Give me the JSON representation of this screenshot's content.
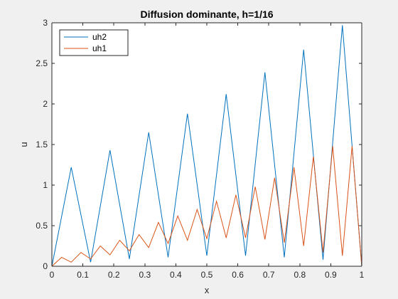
{
  "chart_data": {
    "type": "line",
    "title": "Diffusion dominante, h=1/16",
    "xlabel": "x",
    "ylabel": "u",
    "xlim": [
      0,
      1
    ],
    "ylim": [
      0,
      3
    ],
    "xticks": [
      0,
      0.1,
      0.2,
      0.3,
      0.4,
      0.5,
      0.6,
      0.7,
      0.8,
      0.9,
      1
    ],
    "xtick_labels": [
      "0",
      "0.1",
      "0.2",
      "0.3",
      "0.4",
      "0.5",
      "0.6",
      "0.7",
      "0.8",
      "0.9",
      "1"
    ],
    "yticks": [
      0,
      0.5,
      1,
      1.5,
      2,
      2.5,
      3
    ],
    "ytick_labels": [
      "0",
      "0.5",
      "1",
      "1.5",
      "2",
      "2.5",
      "3"
    ],
    "grid": false,
    "legend_position": "top-left",
    "series": [
      {
        "name": "uh2",
        "color": "#0072BD",
        "x": [
          0,
          0.0625,
          0.125,
          0.1875,
          0.25,
          0.3125,
          0.375,
          0.4375,
          0.5,
          0.5625,
          0.625,
          0.6875,
          0.75,
          0.8125,
          0.875,
          0.9375,
          1
        ],
        "y": [
          0,
          1.22,
          0.05,
          1.43,
          0.09,
          1.65,
          0.11,
          1.88,
          0.13,
          2.12,
          0.13,
          2.39,
          0.11,
          2.67,
          0.08,
          2.97,
          0
        ]
      },
      {
        "name": "uh1",
        "color": "#D95319",
        "x": [
          0,
          0.03125,
          0.0625,
          0.09375,
          0.125,
          0.15625,
          0.1875,
          0.21875,
          0.25,
          0.28125,
          0.3125,
          0.34375,
          0.375,
          0.40625,
          0.4375,
          0.46875,
          0.5,
          0.53125,
          0.5625,
          0.59375,
          0.625,
          0.65625,
          0.6875,
          0.71875,
          0.75,
          0.78125,
          0.8125,
          0.84375,
          0.875,
          0.90625,
          0.9375,
          0.96875,
          1
        ],
        "y": [
          0,
          0.11,
          0.05,
          0.17,
          0.09,
          0.25,
          0.14,
          0.32,
          0.19,
          0.39,
          0.23,
          0.54,
          0.28,
          0.62,
          0.32,
          0.7,
          0.34,
          0.8,
          0.35,
          0.88,
          0.35,
          0.98,
          0.33,
          1.09,
          0.29,
          1.22,
          0.25,
          1.35,
          0.17,
          1.48,
          0.13,
          1.48,
          0
        ]
      }
    ]
  }
}
